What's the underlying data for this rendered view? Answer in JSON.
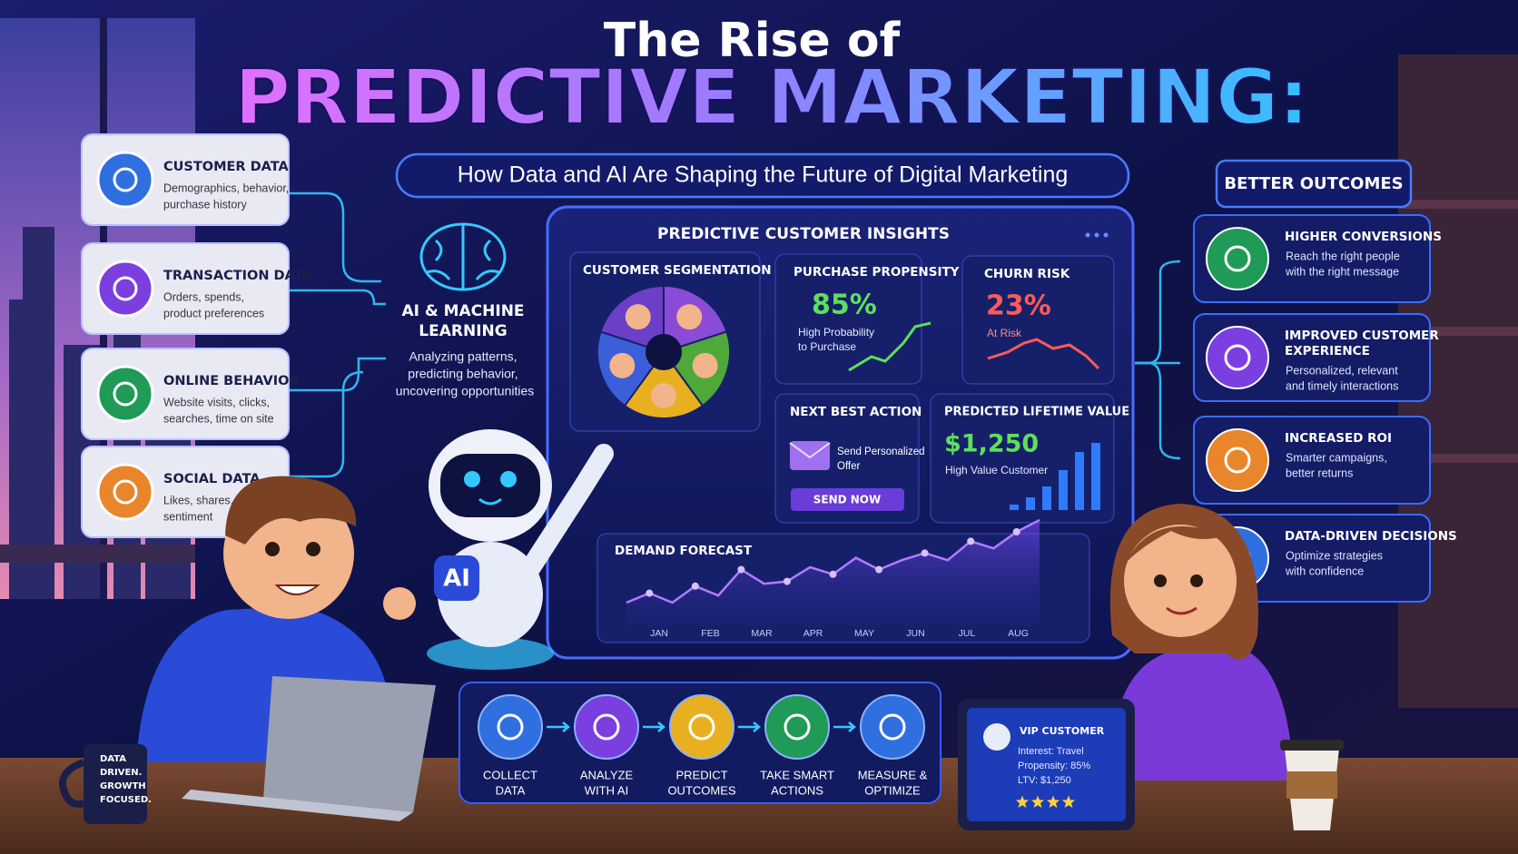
{
  "header": {
    "title_line1": "The Rise of",
    "title_line2": "PREDICTIVE MARKETING:",
    "subtitle": "How Data and AI Are Shaping the Future of Digital Marketing"
  },
  "sources": [
    {
      "title": "CUSTOMER DATA",
      "desc": [
        "Demographics, behavior,",
        "purchase history"
      ]
    },
    {
      "title": "TRANSACTION DATA",
      "desc": [
        "Orders, spends,",
        "product preferences"
      ]
    },
    {
      "title": "ONLINE BEHAVIOR",
      "desc": [
        "Website visits, clicks,",
        "searches, time on site"
      ]
    },
    {
      "title": "SOCIAL DATA",
      "desc": [
        "Likes, shares, comments,",
        "sentiment"
      ]
    }
  ],
  "ai": {
    "title": [
      "AI & MACHINE",
      "LEARNING"
    ],
    "desc": [
      "Analyzing patterns,",
      "predicting behavior,",
      "uncovering opportunities"
    ]
  },
  "dashboard": {
    "title": "PREDICTIVE CUSTOMER INSIGHTS",
    "segmentation": {
      "title": "CUSTOMER SEGMENTATION"
    },
    "propensity": {
      "title": "PURCHASE PROPENSITY",
      "value": "85%",
      "desc": [
        "High Probability",
        "to Purchase"
      ]
    },
    "churn": {
      "title": "CHURN RISK",
      "value": "23%",
      "desc": "At Risk"
    },
    "next_action": {
      "title": "NEXT BEST ACTION",
      "desc": [
        "Send Personalized",
        "Offer"
      ],
      "button": "SEND NOW"
    },
    "lifetime_value": {
      "title": "PREDICTED LIFETIME VALUE",
      "value": "$1,250",
      "desc": "High Value Customer"
    },
    "demand_forecast": {
      "title": "DEMAND FORECAST",
      "months": [
        "JAN",
        "FEB",
        "MAR",
        "APR",
        "MAY",
        "JUN",
        "JUL",
        "AUG"
      ],
      "values": [
        10,
        14,
        10,
        17,
        13,
        24,
        18,
        19,
        25,
        22,
        29,
        24,
        28,
        31,
        28,
        36,
        33,
        40,
        45
      ]
    }
  },
  "outcomes": {
    "title": "BETTER OUTCOMES",
    "items": [
      {
        "title": [
          "HIGHER CONVERSIONS"
        ],
        "desc": [
          "Reach the right people",
          "with the right message"
        ]
      },
      {
        "title": [
          "IMPROVED CUSTOMER",
          "EXPERIENCE"
        ],
        "desc": [
          "Personalized, relevant",
          "and timely interactions"
        ]
      },
      {
        "title": [
          "INCREASED ROI"
        ],
        "desc": [
          "Smarter campaigns,",
          "better returns"
        ]
      },
      {
        "title": [
          "DATA-DRIVEN DECISIONS"
        ],
        "desc": [
          "Optimize strategies",
          "with confidence"
        ]
      }
    ]
  },
  "process": [
    [
      "COLLECT",
      "DATA"
    ],
    [
      "ANALYZE",
      "WITH AI"
    ],
    [
      "PREDICT",
      "OUTCOMES"
    ],
    [
      "TAKE SMART",
      "ACTIONS"
    ],
    [
      "MEASURE &",
      "OPTIMIZE"
    ]
  ],
  "robot": {
    "badge": "AI"
  },
  "tablet": {
    "title": "VIP CUSTOMER",
    "lines": [
      "Interest: Travel",
      "Propensity: 85%",
      "LTV: $1,250"
    ]
  },
  "mug": [
    "DATA",
    "DRIVEN.",
    "GROWTH",
    "FOCUSED."
  ]
}
